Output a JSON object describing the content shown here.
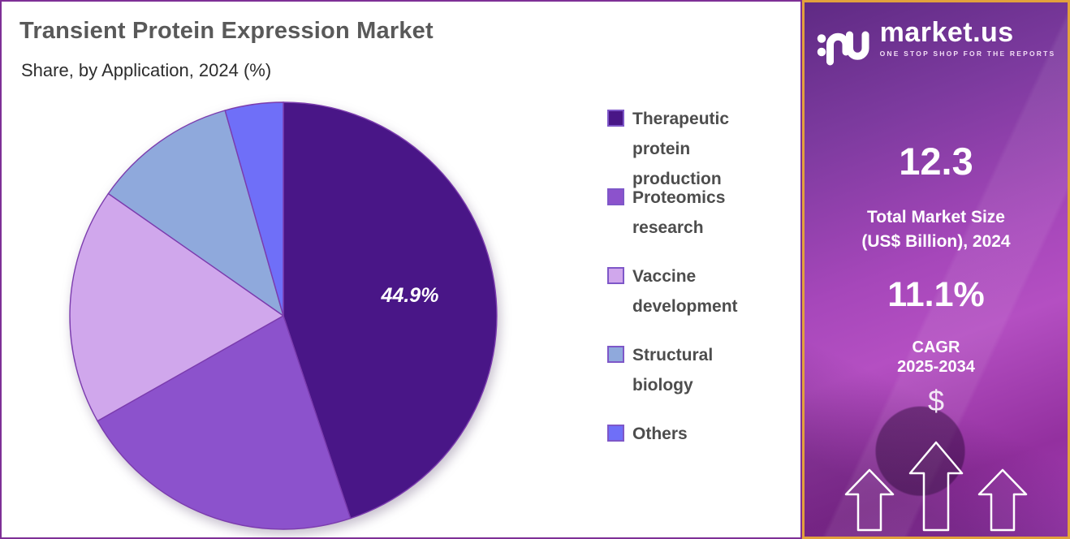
{
  "header": {
    "title": "Transient Protein Expression Market",
    "subtitle": "Share, by Application, 2024 (%)"
  },
  "chart_data": {
    "type": "pie",
    "title": "Transient Protein Expression Market",
    "subtitle": "Share, by Application, 2024 (%)",
    "unit": "%",
    "start_angle_deg": 0,
    "direction": "clockwise",
    "legend_position": "right",
    "slices": [
      {
        "label": "Therapeutic protein production",
        "value": 44.9,
        "display_label": "44.9%",
        "color": "#491687"
      },
      {
        "label": "Proteomics research",
        "value": 21.9,
        "color": "#8C52CC"
      },
      {
        "label": "Vaccine development",
        "value": 17.9,
        "color": "#D0A7EC"
      },
      {
        "label": "Structural biology",
        "value": 10.9,
        "color": "#8FA9DC"
      },
      {
        "label": "Others",
        "value": 4.4,
        "color": "#6F6FF8"
      }
    ]
  },
  "sidebar": {
    "brand": {
      "name": "market.us",
      "tagline": "ONE STOP SHOP FOR THE REPORTS",
      "logo_icon": "market-us-monogram"
    },
    "market_size": {
      "value": "12.3",
      "label_line1": "Total Market Size",
      "label_line2": "(US$ Billion), 2024"
    },
    "cagr": {
      "value": "11.1%",
      "label_line1": "CAGR",
      "label_line2": "2025-2034"
    },
    "dollar_symbol": "$",
    "icons": [
      "dollar-icon",
      "up-arrow-icon",
      "up-arrow-icon",
      "up-arrow-icon"
    ]
  },
  "ui_colors": {
    "panel_border": "#7E2F96",
    "sidebar_border": "#E2A13C",
    "sidebar_gradient_top": "#5F2A84",
    "sidebar_gradient_mid": "#B44FC2",
    "sidebar_gradient_bottom": "#A23EB4",
    "title_color": "#595959",
    "subtitle_color": "#2D2D2D",
    "legend_text_color": "#4D4D4D",
    "swatch_border": "#7E57C8",
    "slice_stroke": "#7B3CAE",
    "slice_label_color": "#FFFFFF"
  }
}
